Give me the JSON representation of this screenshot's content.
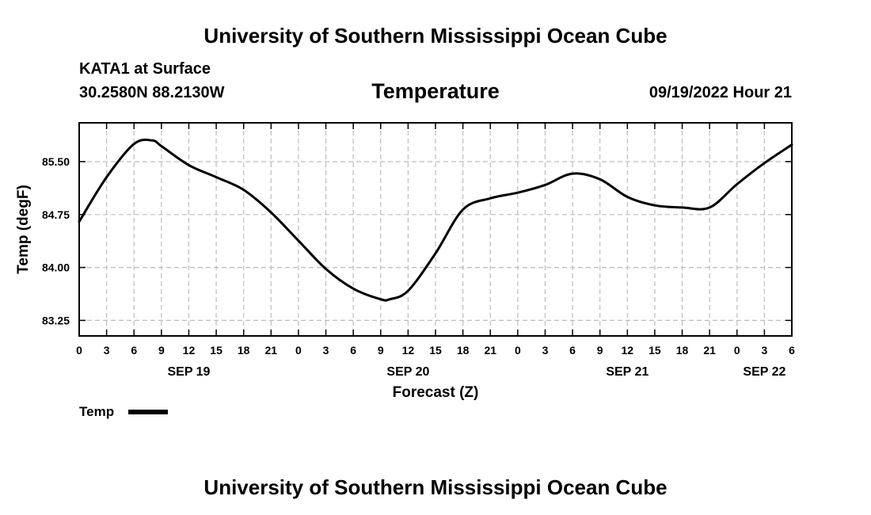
{
  "header": {
    "title": "University of Southern Mississippi Ocean Cube",
    "station": "KATA1 at Surface",
    "coords": "30.2580N  88.2130W",
    "chart_title": "Temperature",
    "datetime": "09/19/2022 Hour 21"
  },
  "footer": {
    "title": "University of Southern Mississippi Ocean Cube"
  },
  "legend": {
    "label": "Temp"
  },
  "chart_data": {
    "type": "line",
    "xlabel": "Forecast (Z)",
    "ylabel": "Temp (degF)",
    "x_unit": "hours since 2022-09-19 00Z",
    "xlim": [
      0,
      78
    ],
    "ylim": [
      83.03,
      86.05
    ],
    "x_ticks": [
      0,
      3,
      6,
      9,
      12,
      15,
      18,
      21,
      24,
      27,
      30,
      33,
      36,
      39,
      42,
      45,
      48,
      51,
      54,
      57,
      60,
      63,
      66,
      69,
      72,
      75,
      78
    ],
    "x_tick_labels": [
      "0",
      "3",
      "6",
      "9",
      "12",
      "15",
      "18",
      "21",
      "0",
      "3",
      "6",
      "9",
      "12",
      "15",
      "18",
      "21",
      "0",
      "3",
      "6",
      "9",
      "12",
      "15",
      "18",
      "21",
      "0",
      "3",
      "6"
    ],
    "y_ticks": [
      83.25,
      84.0,
      84.75,
      85.5
    ],
    "y_tick_labels": [
      "83.25",
      "84.00",
      "84.75",
      "85.50"
    ],
    "date_labels": [
      {
        "label": "SEP 19",
        "x": 12
      },
      {
        "label": "SEP 20",
        "x": 36
      },
      {
        "label": "SEP 21",
        "x": 60
      },
      {
        "label": "SEP 22",
        "x": 75
      }
    ],
    "grid": true,
    "series": [
      {
        "name": "Temp",
        "color": "#000000",
        "x": [
          0,
          3,
          6,
          8,
          9,
          12,
          15,
          18,
          21,
          24,
          27,
          30,
          33,
          34,
          36,
          39,
          42,
          45,
          48,
          51,
          54,
          57,
          60,
          63,
          66,
          69,
          72,
          75,
          78
        ],
        "y": [
          84.65,
          85.28,
          85.75,
          85.8,
          85.72,
          85.45,
          85.28,
          85.1,
          84.78,
          84.38,
          83.98,
          83.7,
          83.55,
          83.55,
          83.67,
          84.2,
          84.82,
          84.98,
          85.06,
          85.17,
          85.33,
          85.25,
          85.0,
          84.88,
          84.85,
          84.85,
          85.18,
          85.48,
          85.74
        ]
      }
    ]
  }
}
